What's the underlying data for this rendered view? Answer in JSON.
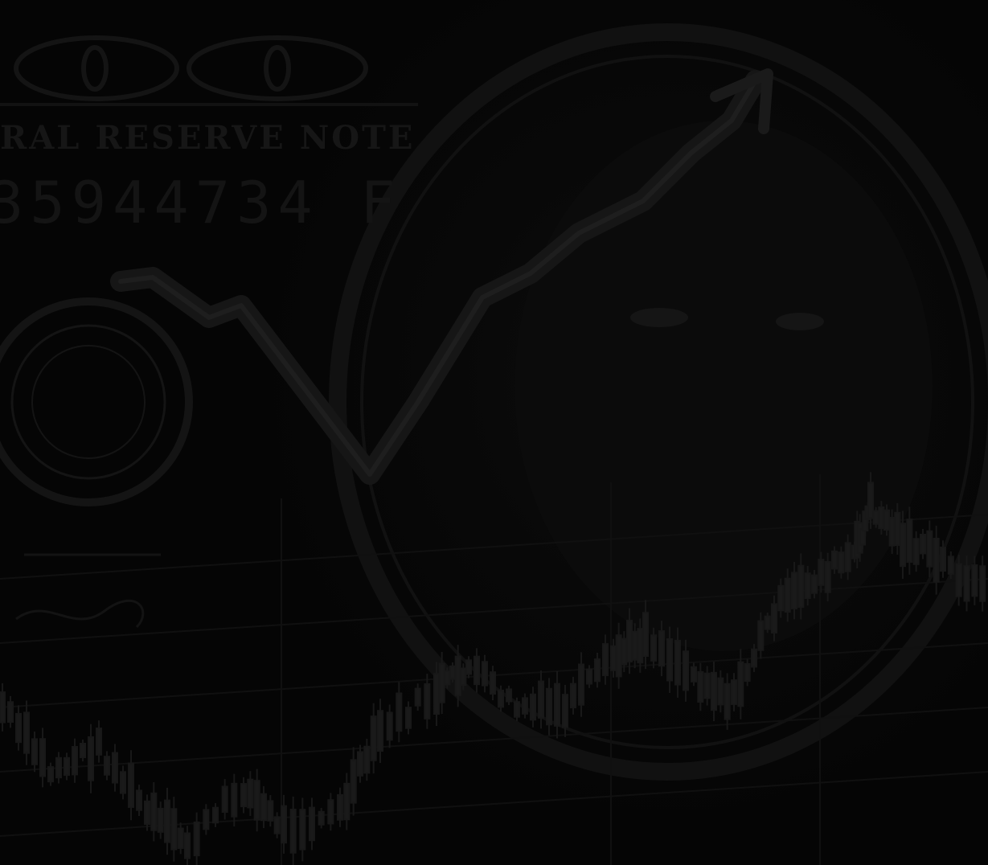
{
  "banknote": {
    "heading_text": "RAL RESERVE NOTE",
    "serial_text": "35944734 F"
  },
  "colors": {
    "background": "#050505",
    "engraving": "#151515",
    "chart_line": "#1c1c1c",
    "candles": "#1a1a1a"
  }
}
